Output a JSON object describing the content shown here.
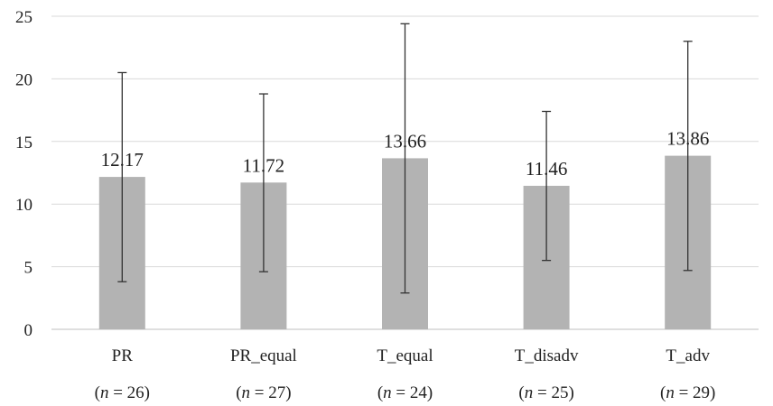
{
  "chart_data": {
    "type": "bar",
    "title": "",
    "xlabel": "",
    "ylabel": "",
    "ylim": [
      0,
      25
    ],
    "yticks": [
      0,
      5,
      10,
      15,
      20,
      25
    ],
    "grid": true,
    "legend": "none",
    "categories": [
      "PR",
      "PR_equal",
      "T_equal",
      "T_disadv",
      "T_adv"
    ],
    "sample_sizes": [
      "26",
      "27",
      "24",
      "25",
      "29"
    ],
    "values": [
      12.17,
      11.72,
      13.66,
      11.46,
      13.86
    ],
    "value_labels": [
      "12.17",
      "11.72",
      "13.66",
      "11.46",
      "13.86"
    ],
    "error_low": [
      3.8,
      4.6,
      2.9,
      5.5,
      4.7
    ],
    "error_high": [
      20.5,
      18.8,
      24.4,
      17.4,
      23.0
    ],
    "colors": {
      "bar": "#b3b3b3",
      "grid": "#d9d9d9",
      "error": "#333333",
      "text": "#222222"
    }
  }
}
